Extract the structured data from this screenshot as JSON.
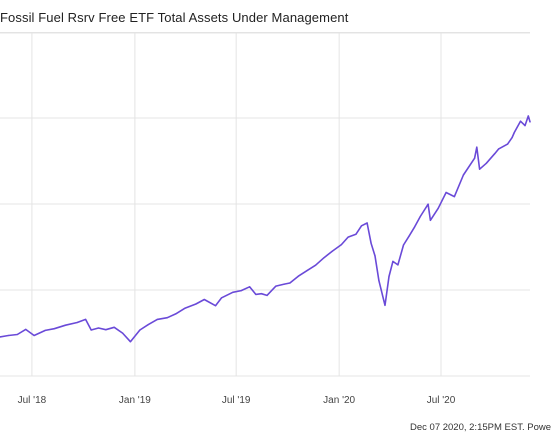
{
  "colors": {
    "series": "#6a4ad8",
    "grid": "#e4e4e4",
    "background": "#ffffff"
  },
  "footer": {
    "text": "Dec 07 2020, 2:15PM EST. Powe"
  },
  "chart_data": {
    "type": "line",
    "title": "Fossil Fuel Rsrv Free ETF Total Assets Under Management",
    "xlabel": "",
    "ylabel": "",
    "grid": true,
    "x_ticks": [
      {
        "date": "2018-07-01",
        "label": "Jul '18"
      },
      {
        "date": "2019-01-01",
        "label": "Jan '19"
      },
      {
        "date": "2019-07-01",
        "label": "Jul '19"
      },
      {
        "date": "2020-01-01",
        "label": "Jan '20"
      },
      {
        "date": "2020-07-01",
        "label": "Jul '20"
      }
    ],
    "xlim": [
      "2018-05-05",
      "2020-12-07"
    ],
    "ylim": [
      0,
      100
    ],
    "series": [
      {
        "x": [
          "2018-05-05",
          "2018-05-20",
          "2018-06-05",
          "2018-06-20",
          "2018-07-05",
          "2018-07-25",
          "2018-08-10",
          "2018-08-30",
          "2018-09-20",
          "2018-10-05",
          "2018-10-15",
          "2018-10-28",
          "2018-11-10",
          "2018-11-25",
          "2018-12-10",
          "2018-12-24",
          "2019-01-10",
          "2019-01-25",
          "2019-02-10",
          "2019-02-28",
          "2019-03-15",
          "2019-04-01",
          "2019-04-20",
          "2019-05-05",
          "2019-05-25",
          "2019-06-05",
          "2019-06-25",
          "2019-07-10",
          "2019-07-25",
          "2019-08-05",
          "2019-08-15",
          "2019-08-25",
          "2019-09-10",
          "2019-09-25",
          "2019-10-05",
          "2019-10-20",
          "2019-11-05",
          "2019-11-20",
          "2019-12-05",
          "2019-12-20",
          "2020-01-05",
          "2020-01-17",
          "2020-01-31",
          "2020-02-10",
          "2020-02-20",
          "2020-02-27",
          "2020-03-05",
          "2020-03-12",
          "2020-03-19",
          "2020-03-23",
          "2020-03-30",
          "2020-04-06",
          "2020-04-15",
          "2020-04-25",
          "2020-05-05",
          "2020-05-15",
          "2020-05-25",
          "2020-06-08",
          "2020-06-12",
          "2020-06-26",
          "2020-07-10",
          "2020-07-25",
          "2020-08-10",
          "2020-08-30",
          "2020-09-03",
          "2020-09-08",
          "2020-09-20",
          "2020-10-05",
          "2020-10-12",
          "2020-10-28",
          "2020-11-05",
          "2020-11-09",
          "2020-11-20",
          "2020-11-28",
          "2020-12-04",
          "2020-12-07"
        ],
        "values": [
          11.4,
          11.8,
          12.1,
          13.6,
          11.8,
          13.3,
          13.8,
          14.8,
          15.6,
          16.5,
          13.4,
          14.0,
          13.5,
          14.2,
          12.5,
          10.0,
          13.4,
          15.0,
          16.5,
          17.0,
          18.1,
          19.8,
          21.0,
          22.3,
          20.5,
          22.8,
          24.4,
          24.9,
          26.0,
          23.8,
          24.0,
          23.5,
          26.2,
          26.8,
          27.1,
          29.1,
          30.8,
          32.3,
          34.5,
          36.4,
          38.3,
          40.5,
          41.3,
          43.8,
          44.6,
          38.7,
          35.0,
          27.8,
          23.2,
          20.6,
          29.0,
          33.4,
          32.4,
          38.2,
          40.8,
          43.5,
          46.5,
          50.1,
          45.4,
          48.9,
          53.5,
          52.3,
          58.6,
          63.5,
          66.7,
          60.3,
          62.0,
          64.8,
          66.2,
          67.6,
          69.5,
          71.0,
          74.3,
          73.0,
          75.8,
          74.1
        ]
      }
    ]
  }
}
